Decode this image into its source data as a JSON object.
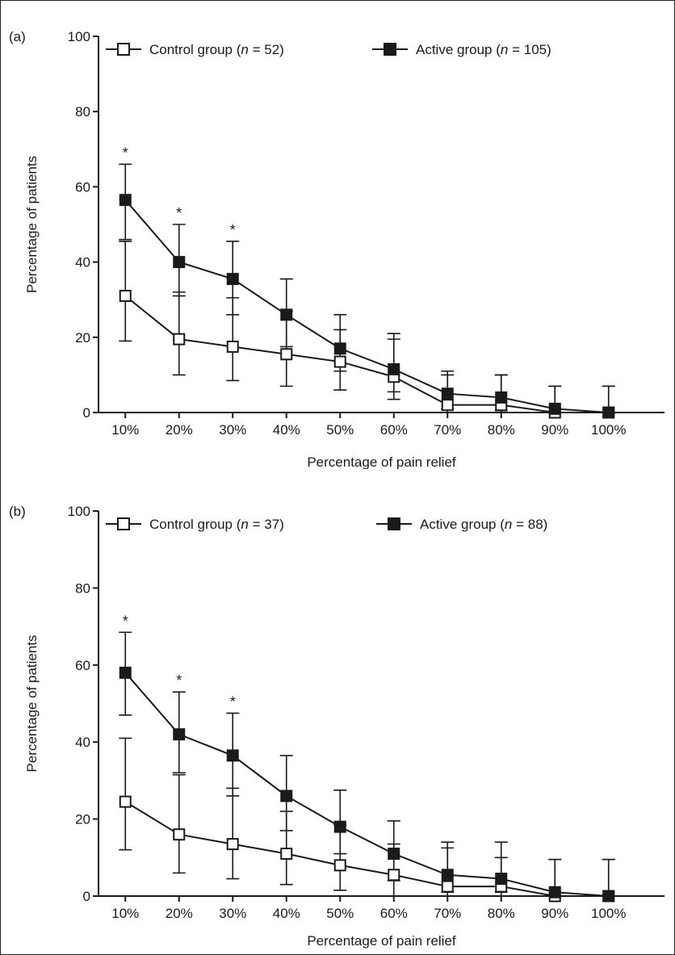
{
  "chart_data": [
    {
      "type": "line",
      "panel_label": "(a)",
      "xlabel": "Percentage of pain relief",
      "ylabel": "Percentage of patients",
      "categories": [
        "10%",
        "20%",
        "30%",
        "40%",
        "50%",
        "60%",
        "70%",
        "80%",
        "90%",
        "100%"
      ],
      "ylim": [
        0,
        100
      ],
      "yticks": [
        "0",
        "20",
        "40",
        "60",
        "80",
        "100"
      ],
      "legend_position": "top",
      "grid": false,
      "significance_marker": "*",
      "significant_categories": [
        "10%",
        "20%",
        "30%"
      ],
      "series": [
        {
          "name_prefix": "Control group (",
          "name_italic": "n",
          "name_suffix": " = 52)",
          "marker": "open-square",
          "color": "#1a1a1a",
          "values": [
            31,
            19.5,
            17.5,
            15.5,
            13.5,
            9.5,
            2,
            2,
            0,
            0
          ],
          "error_lower": [
            19,
            10,
            8.5,
            7,
            6,
            3.5,
            0,
            0,
            0,
            0
          ],
          "error_upper": [
            45.5,
            32,
            30.5,
            27,
            22,
            19.5,
            10,
            10,
            7,
            7
          ]
        },
        {
          "name_prefix": "Active group (",
          "name_italic": "n",
          "name_suffix": " = 105)",
          "marker": "filled-square",
          "color": "#1a1a1a",
          "values": [
            56.5,
            40,
            35.5,
            26,
            17,
            11.5,
            5,
            4,
            1,
            0
          ],
          "error_lower": [
            46,
            31,
            26,
            17.5,
            11,
            5.5,
            1,
            0.5,
            0,
            0
          ],
          "error_upper": [
            66,
            50,
            45.5,
            35.5,
            26,
            21,
            11,
            10,
            7,
            7
          ]
        }
      ]
    },
    {
      "type": "line",
      "panel_label": "(b)",
      "xlabel": "Percentage of pain relief",
      "ylabel": "Percentage of patients",
      "categories": [
        "10%",
        "20%",
        "30%",
        "40%",
        "50%",
        "60%",
        "70%",
        "80%",
        "90%",
        "100%"
      ],
      "ylim": [
        0,
        100
      ],
      "yticks": [
        "0",
        "20",
        "40",
        "60",
        "80",
        "100"
      ],
      "legend_position": "top",
      "grid": false,
      "significance_marker": "*",
      "significant_categories": [
        "10%",
        "20%",
        "30%"
      ],
      "series": [
        {
          "name_prefix": "Control group (",
          "name_italic": "n",
          "name_suffix": " = 37)",
          "marker": "open-square",
          "color": "#1a1a1a",
          "values": [
            24.5,
            16,
            13.5,
            11,
            8,
            5.5,
            2.5,
            2.5,
            0,
            0
          ],
          "error_lower": [
            12,
            6,
            4.5,
            3,
            1.5,
            0,
            0,
            0,
            0,
            0
          ],
          "error_upper": [
            41,
            31.5,
            28,
            22,
            18.5,
            13.5,
            12.5,
            10,
            9.5,
            9.5
          ]
        },
        {
          "name_prefix": "Active group (",
          "name_italic": "n",
          "name_suffix": " = 88)",
          "marker": "filled-square",
          "color": "#1a1a1a",
          "values": [
            58,
            42,
            36.5,
            26,
            18,
            11,
            5.5,
            4.5,
            1,
            0
          ],
          "error_lower": [
            47,
            32,
            26,
            17,
            11,
            4,
            1,
            1,
            0,
            0
          ],
          "error_upper": [
            68.5,
            53,
            47.5,
            36.5,
            27.5,
            19.5,
            14,
            14,
            9.5,
            9.5
          ]
        }
      ]
    }
  ]
}
